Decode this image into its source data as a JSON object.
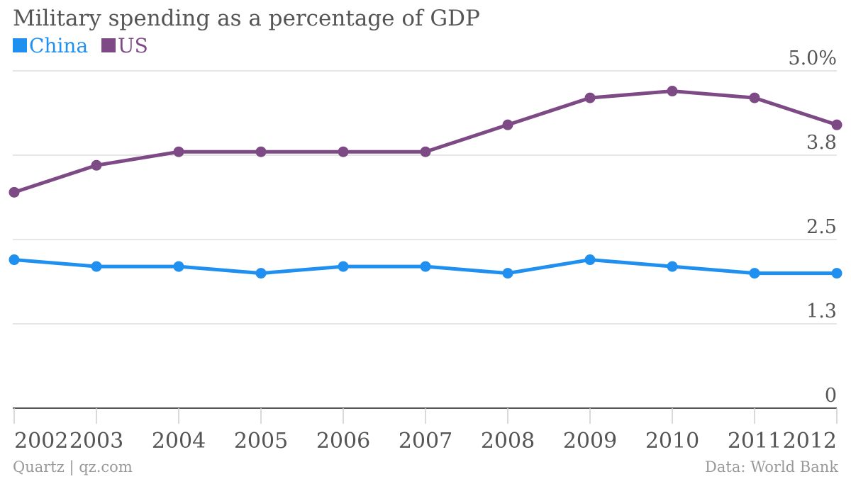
{
  "chart_data": {
    "type": "line",
    "title": "Military spending as a percentage of GDP",
    "x": [
      "2002",
      "2003",
      "2004",
      "2005",
      "2006",
      "2007",
      "2008",
      "2009",
      "2010",
      "2011",
      "2012"
    ],
    "series": [
      {
        "name": "China",
        "color": "#1f8ff0",
        "values": [
          2.2,
          2.1,
          2.1,
          2.0,
          2.1,
          2.1,
          2.0,
          2.2,
          2.1,
          2.0,
          2.0
        ]
      },
      {
        "name": "US",
        "color": "#7d4a86",
        "values": [
          3.2,
          3.6,
          3.8,
          3.8,
          3.8,
          3.8,
          4.2,
          4.6,
          4.7,
          4.6,
          4.2
        ]
      }
    ],
    "y_ticks": [
      {
        "value": 0,
        "label": "0"
      },
      {
        "value": 1.25,
        "label": "1.3"
      },
      {
        "value": 2.5,
        "label": "2.5"
      },
      {
        "value": 3.75,
        "label": "3.8"
      },
      {
        "value": 5,
        "label": "5.0%"
      }
    ],
    "ylim": [
      0,
      5
    ],
    "grid": true,
    "legend_position": "top-left"
  },
  "footer": {
    "source_left": "Quartz | qz.com",
    "source_right": "Data: World Bank"
  }
}
